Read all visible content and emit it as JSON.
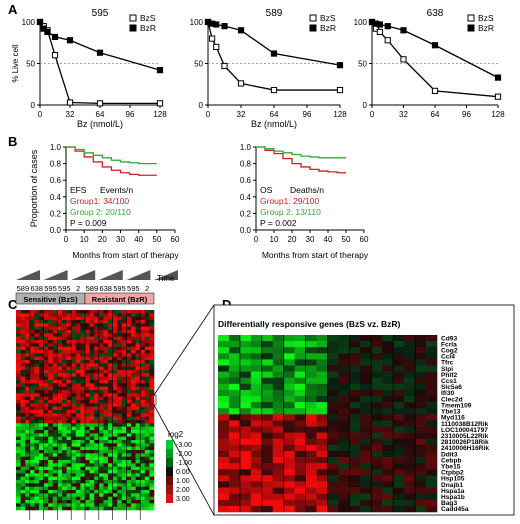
{
  "panels": {
    "A": "A",
    "B": "B",
    "C": "C",
    "D": "D"
  },
  "chart_data": [
    {
      "type": "line",
      "title": "595",
      "xlabel": "Bz (nmol/L)",
      "ylabel": "% Live cell",
      "xticks": [
        0,
        32,
        64,
        96,
        128
      ],
      "yticks": [
        0,
        50,
        100
      ],
      "xlim": [
        0,
        128
      ],
      "ylim": [
        0,
        100
      ],
      "reference_line_y": 50,
      "series": [
        {
          "name": "BzS",
          "marker": "open-square",
          "x": [
            0,
            4,
            8,
            16,
            32,
            64,
            128
          ],
          "y": [
            100,
            95,
            90,
            60,
            3,
            2,
            2
          ]
        },
        {
          "name": "BzR",
          "marker": "filled-square",
          "x": [
            0,
            4,
            8,
            16,
            32,
            64,
            128
          ],
          "y": [
            100,
            92,
            88,
            82,
            78,
            63,
            42
          ]
        }
      ]
    },
    {
      "type": "line",
      "title": "589",
      "xlabel": "Bz (nmol/L)",
      "ylabel": "",
      "xticks": [
        0,
        32,
        64,
        96,
        128
      ],
      "yticks": [
        0,
        50,
        100
      ],
      "xlim": [
        0,
        128
      ],
      "ylim": [
        0,
        100
      ],
      "reference_line_y": 50,
      "series": [
        {
          "name": "BzS",
          "marker": "open-square",
          "x": [
            0,
            4,
            8,
            16,
            32,
            64,
            128
          ],
          "y": [
            100,
            80,
            70,
            47,
            26,
            18,
            18
          ]
        },
        {
          "name": "BzR",
          "marker": "filled-square",
          "x": [
            0,
            4,
            8,
            16,
            32,
            64,
            128
          ],
          "y": [
            100,
            98,
            97,
            95,
            90,
            62,
            48
          ]
        }
      ]
    },
    {
      "type": "line",
      "title": "638",
      "xlabel": "",
      "ylabel": "",
      "xticks": [
        0,
        32,
        64,
        96,
        128
      ],
      "yticks": [
        0,
        50,
        100
      ],
      "xlim": [
        0,
        128
      ],
      "ylim": [
        0,
        100
      ],
      "reference_line_y": 50,
      "series": [
        {
          "name": "BzS",
          "marker": "open-square",
          "x": [
            0,
            4,
            8,
            16,
            32,
            64,
            128
          ],
          "y": [
            100,
            92,
            88,
            78,
            55,
            17,
            10
          ]
        },
        {
          "name": "BzR",
          "marker": "filled-square",
          "x": [
            0,
            4,
            8,
            16,
            32,
            64,
            128
          ],
          "y": [
            100,
            98,
            97,
            95,
            90,
            72,
            33
          ]
        }
      ]
    },
    {
      "type": "line",
      "title": "",
      "xlabel": "Months from start of therapy",
      "ylabel": "Proportion of cases",
      "xticks": [
        0,
        10,
        20,
        30,
        40,
        50,
        60
      ],
      "yticks": [
        0.0,
        0.2,
        0.4,
        0.6,
        0.8,
        1.0
      ],
      "xlim": [
        0,
        60
      ],
      "ylim": [
        0,
        1.0
      ],
      "annotation": {
        "endpoint": "EFS",
        "header": "Events/n",
        "group1": "Group1: 34/100",
        "group2": "Group 2: 20/110",
        "pvalue": "P = 0.009"
      },
      "series": [
        {
          "name": "Group1",
          "color": "#cc2222",
          "x": [
            0,
            5,
            10,
            15,
            20,
            25,
            30,
            35,
            40,
            45,
            50
          ],
          "y": [
            1.0,
            0.95,
            0.88,
            0.82,
            0.76,
            0.72,
            0.69,
            0.67,
            0.66,
            0.66,
            0.66
          ]
        },
        {
          "name": "Group 2",
          "color": "#33aa33",
          "x": [
            0,
            5,
            10,
            15,
            20,
            25,
            30,
            35,
            40,
            45,
            50
          ],
          "y": [
            1.0,
            0.97,
            0.93,
            0.9,
            0.87,
            0.84,
            0.82,
            0.81,
            0.8,
            0.8,
            0.8
          ]
        }
      ]
    },
    {
      "type": "line",
      "title": "",
      "xlabel": "Months from start of therapy",
      "ylabel": "",
      "xticks": [
        0,
        10,
        20,
        30,
        40,
        50,
        60
      ],
      "yticks": [
        0.0,
        0.2,
        0.4,
        0.6,
        0.8,
        1.0
      ],
      "xlim": [
        0,
        60
      ],
      "ylim": [
        0,
        1.0
      ],
      "annotation": {
        "endpoint": "OS",
        "header": "Deaths/n",
        "group1": "Group1: 29/100",
        "group2": "Group 2: 13/110",
        "pvalue": "P = 0.002"
      },
      "series": [
        {
          "name": "Group1",
          "color": "#cc2222",
          "x": [
            0,
            5,
            10,
            15,
            20,
            25,
            30,
            35,
            40,
            45,
            50
          ],
          "y": [
            1.0,
            0.96,
            0.92,
            0.86,
            0.8,
            0.76,
            0.73,
            0.71,
            0.7,
            0.69,
            0.69
          ]
        },
        {
          "name": "Group 2",
          "color": "#33aa33",
          "x": [
            0,
            5,
            10,
            15,
            20,
            25,
            30,
            35,
            40,
            45,
            50
          ],
          "y": [
            1.0,
            0.98,
            0.95,
            0.93,
            0.91,
            0.89,
            0.88,
            0.87,
            0.87,
            0.87,
            0.87
          ]
        }
      ]
    },
    {
      "type": "heatmap",
      "title": "",
      "time_label": "Time",
      "column_labels": [
        "589",
        "638",
        "595",
        "595",
        "2",
        "589",
        "638",
        "595",
        "595",
        "2"
      ],
      "groups": [
        {
          "label": "Sensitive (BzS)",
          "color": "#b0b0b0"
        },
        {
          "label": "Resistant (BzR)",
          "color": "#f2a7a7"
        }
      ],
      "legend_title": "log2",
      "legend_ticks": [
        "-3.00",
        "-2.00",
        "-1.00",
        "0.00",
        "1.00",
        "2.00",
        "3.00"
      ]
    },
    {
      "type": "heatmap",
      "title": "Differentially responsive genes (BzS vz. BzR)",
      "genes": [
        "Cd93",
        "Fcrla",
        "Cog2",
        "Ccl4",
        "Tfrc",
        "Slpi",
        "Phlf2",
        "Ccs1",
        "Slc5a6",
        "Ifi30",
        "Clec2d",
        "Tmem109",
        "Ybe13",
        "Myd116",
        "1110038B12Rik",
        "LOC100041797",
        "2310005L22Rik",
        "2810026P18Rik",
        "2410006H16Rik",
        "Ddit3",
        "Cebpb",
        "Ybe15",
        "Ctpbp2",
        "Hsp105",
        "Dnajb1",
        "Hspa1a",
        "Hspa1b",
        "Bag3",
        "Cadd45a"
      ]
    }
  ]
}
